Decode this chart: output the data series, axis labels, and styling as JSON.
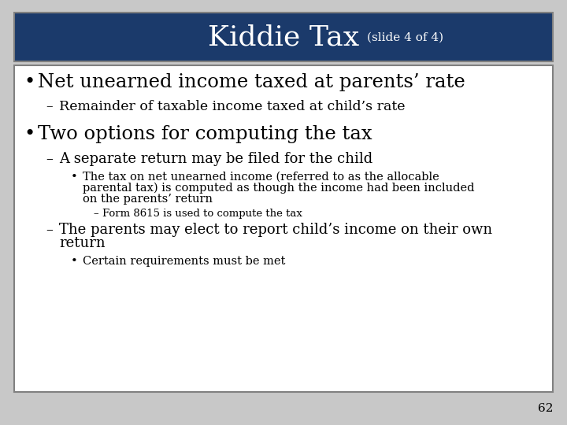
{
  "title": "Kiddie Tax",
  "subtitle": "(slide 4 of 4)",
  "header_bg": "#1B3A6B",
  "header_text_color": "#FFFFFF",
  "body_bg": "#FFFFFF",
  "border_color": "#808080",
  "slide_bg": "#C8C8C8",
  "page_number": "62",
  "content_lines": [
    {
      "level": 1,
      "text": "Net unearned income taxed at parents’ rate",
      "size": 17.5
    },
    {
      "level": 2,
      "text": "Remainder of taxable income taxed at child’s rate",
      "size": 12.5
    },
    {
      "level": 1,
      "text": "Two options for computing the tax",
      "size": 17.5
    },
    {
      "level": 2,
      "text": "A separate return may be filed for the child",
      "size": 13
    },
    {
      "level": 3,
      "line1": "The tax on net unearned income (referred to as the allocable",
      "line2": "parental tax) is computed as though the income had been included",
      "line3": "on the parents’ return",
      "size": 10.5
    },
    {
      "level": 4,
      "text": "Form 8615 is used to compute the tax",
      "size": 9.5
    },
    {
      "level": 2,
      "line1": "The parents may elect to report child’s income on their own",
      "line2": "return",
      "size": 13
    },
    {
      "level": 3,
      "text": "Certain requirements must be met",
      "size": 10.5
    }
  ],
  "indent_text": {
    "1": 48,
    "2": 75,
    "3": 105,
    "4": 130
  },
  "indent_bullet": {
    "1": 30,
    "2": 58,
    "3": 90,
    "4": 118
  },
  "line_gap": {
    "1": 30,
    "2": 20,
    "3": 14,
    "4": 14
  },
  "extra_before_l1": 8
}
